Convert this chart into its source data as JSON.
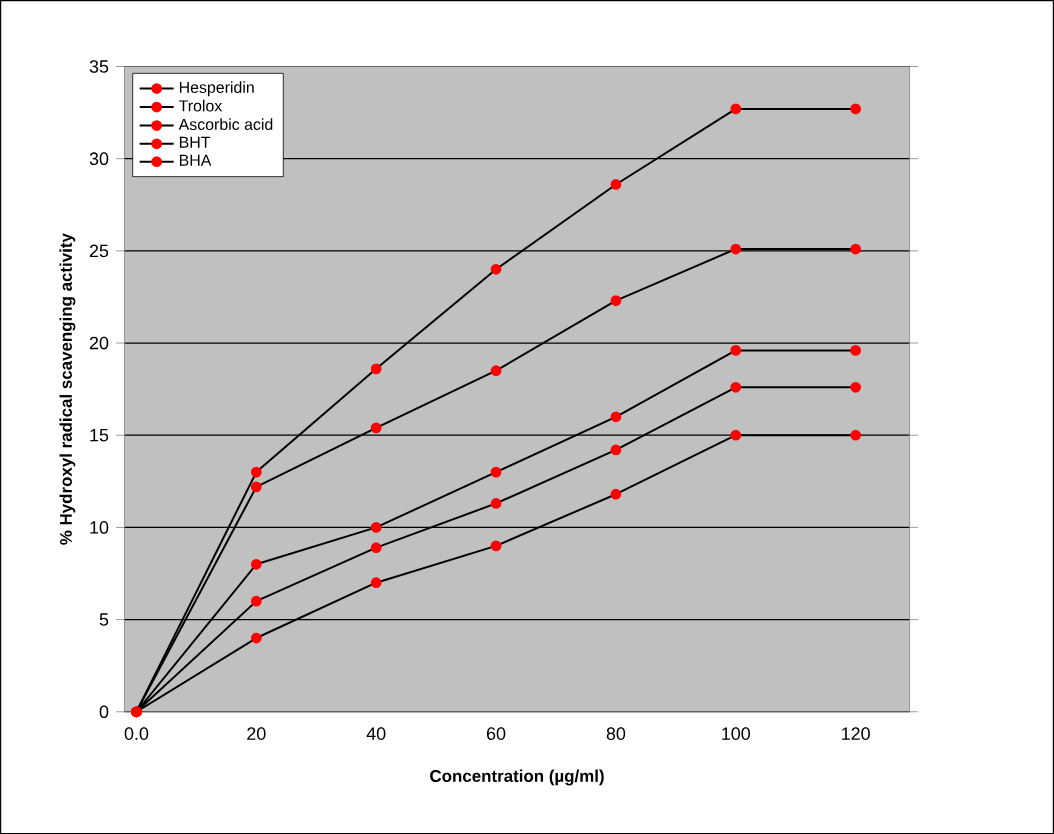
{
  "chart_data": {
    "type": "line",
    "xlabel": "Concentration (µg/ml)",
    "ylabel": "% Hydroxyl radical scavenging activity",
    "categories": [
      "0.0",
      "20",
      "40",
      "60",
      "80",
      "100",
      "120"
    ],
    "series": [
      {
        "name": "Hesperidin",
        "color": "#000000",
        "values": [
          0,
          13,
          18.6,
          24,
          28.6,
          32.7,
          32.7
        ]
      },
      {
        "name": "Trolox",
        "color": "#000000",
        "values": [
          0,
          12.2,
          15.4,
          18.5,
          22.3,
          25.1,
          25.1
        ]
      },
      {
        "name": "Ascorbic acid",
        "color": "#000000",
        "values": [
          0,
          8,
          10,
          13,
          16,
          19.6,
          19.6
        ]
      },
      {
        "name": "BHT",
        "color": "#000000",
        "values": [
          0,
          6,
          8.9,
          11.3,
          14.2,
          17.6,
          17.6
        ]
      },
      {
        "name": "BHA",
        "color": "#000000",
        "values": [
          0,
          4,
          7,
          9,
          11.8,
          15,
          15
        ]
      }
    ],
    "ylim": [
      0,
      35
    ],
    "yticks": [
      0,
      5,
      10,
      15,
      20,
      25,
      30,
      35
    ],
    "grid": "y",
    "legend": "top left",
    "marker": "circle",
    "line_style": "solid"
  }
}
